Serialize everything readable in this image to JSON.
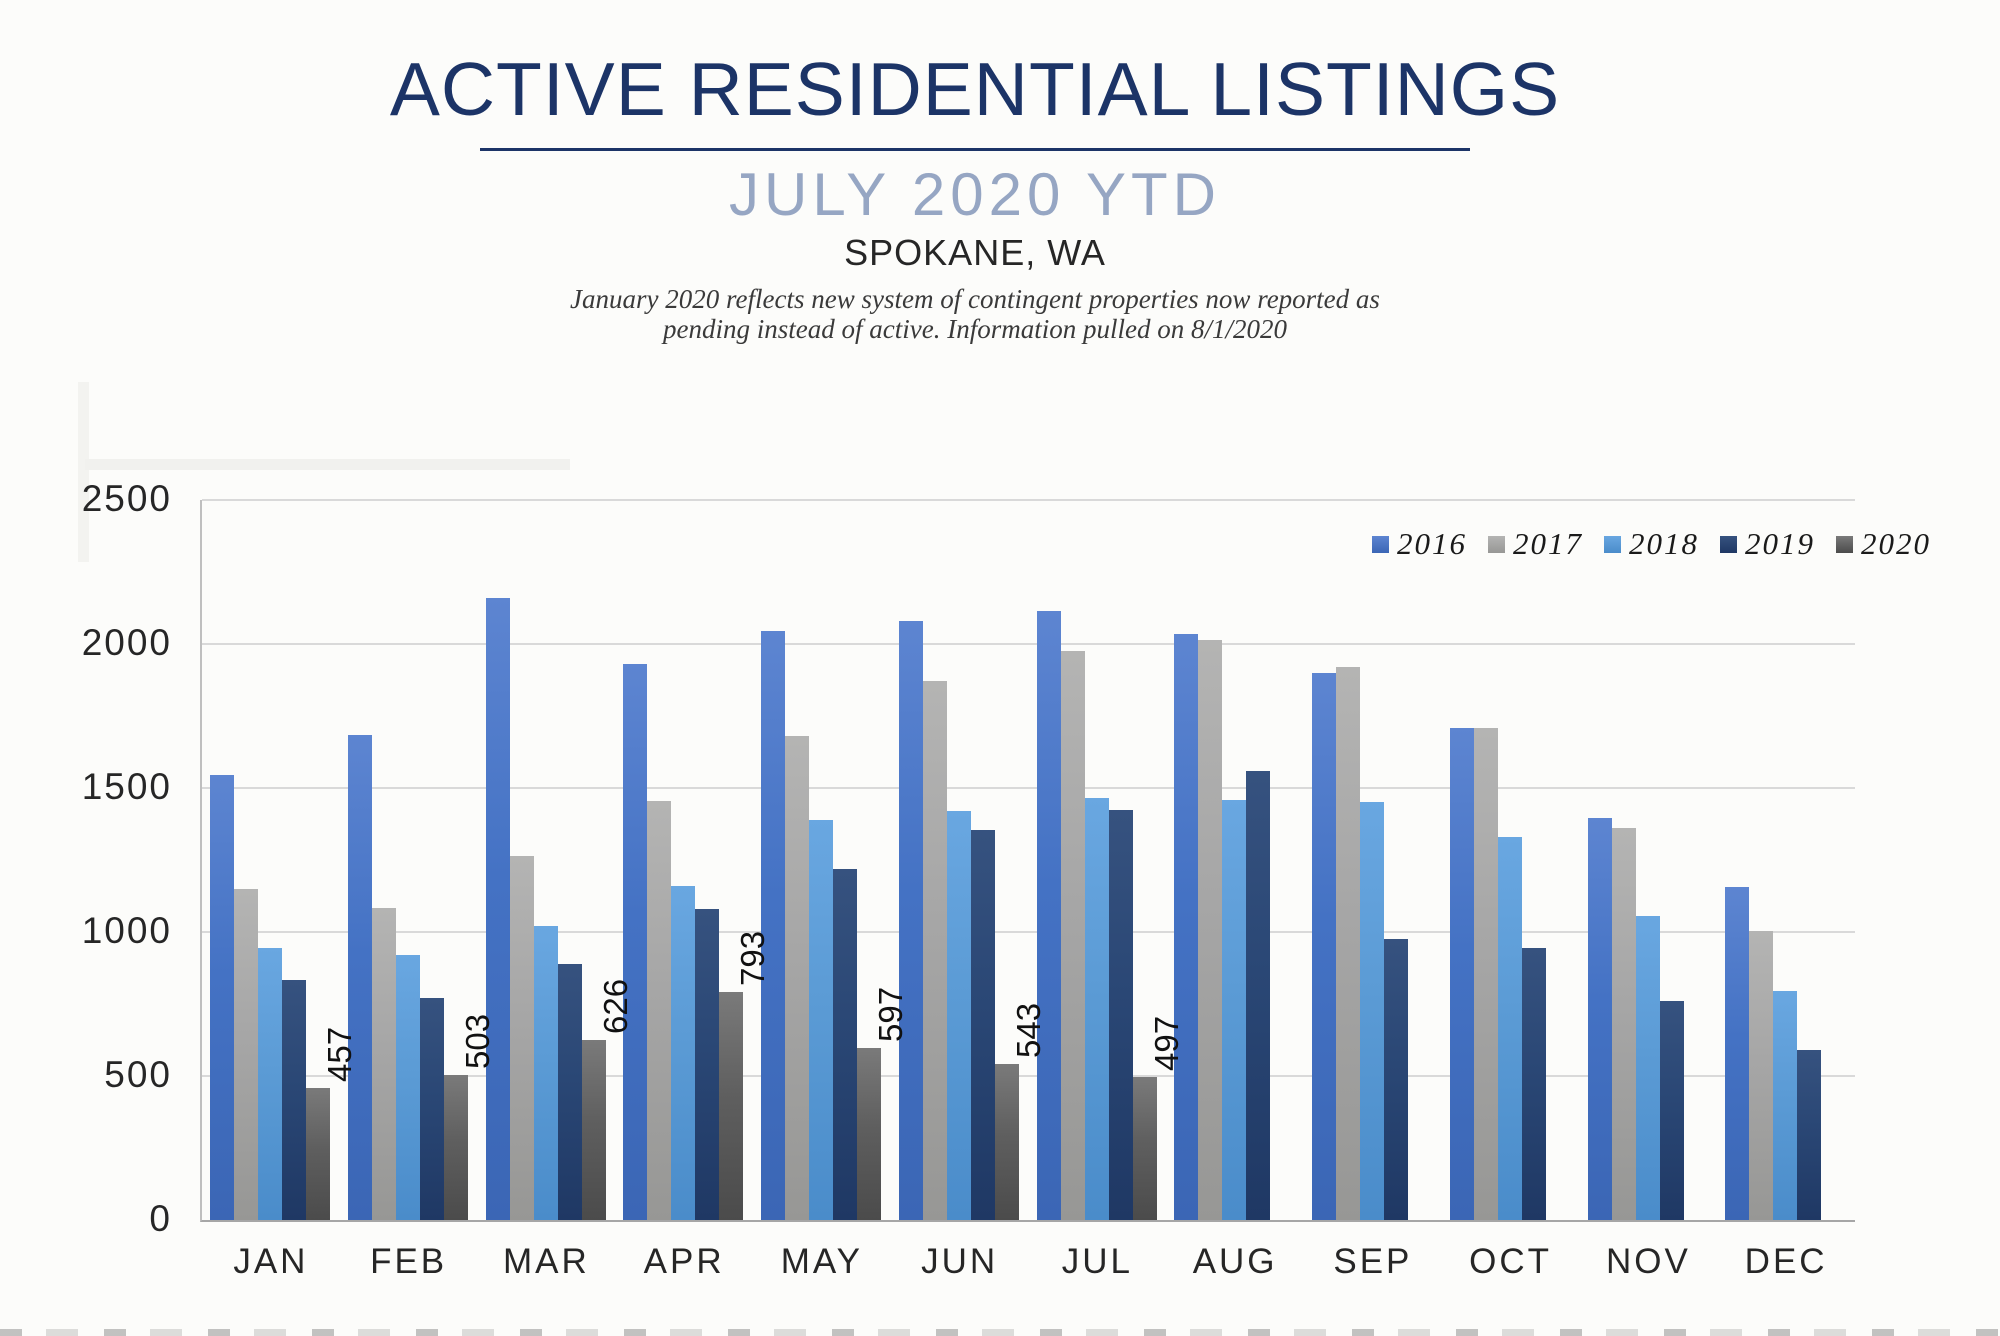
{
  "page": {
    "title": "ACTIVE RESIDENTIAL LISTINGS",
    "subtitle": "JULY 2020 YTD",
    "location": "SPOKANE, WA",
    "note_line1": "January 2020 reflects new system of contingent properties now reported as",
    "note_line2": "pending instead of active.  Information pulled on 8/1/2020"
  },
  "colors": {
    "title_navy": "#1c3467",
    "subtitle_blue_gray": "#96a6c3",
    "gridline": "#d9d9d9",
    "axis_line": "#a6a6a6",
    "series_2016": "#4472c4",
    "series_2017": "#a6a6a6",
    "series_2018": "#5b9bd5",
    "series_2019": "#264478",
    "series_2020": "#595959"
  },
  "chart_data": {
    "type": "bar",
    "title": "ACTIVE RESIDENTIAL LISTINGS",
    "subtitle": "JULY 2020 YTD",
    "region": "SPOKANE, WA",
    "categories": [
      "JAN",
      "FEB",
      "MAR",
      "APR",
      "MAY",
      "JUN",
      "JUL",
      "AUG",
      "SEP",
      "OCT",
      "NOV",
      "DEC"
    ],
    "series": [
      {
        "name": "2016",
        "values": [
          1545,
          1685,
          2160,
          1930,
          2045,
          2080,
          2115,
          2035,
          1900,
          1710,
          1395,
          1155
        ]
      },
      {
        "name": "2017",
        "values": [
          1150,
          1085,
          1265,
          1455,
          1680,
          1870,
          1975,
          2015,
          1920,
          1710,
          1360,
          1005
        ]
      },
      {
        "name": "2018",
        "values": [
          945,
          920,
          1020,
          1160,
          1390,
          1420,
          1465,
          1460,
          1450,
          1330,
          1055,
          795
        ]
      },
      {
        "name": "2019",
        "values": [
          835,
          770,
          890,
          1080,
          1220,
          1355,
          1425,
          1560,
          975,
          945,
          760,
          590
        ]
      },
      {
        "name": "2020",
        "values": [
          457,
          503,
          626,
          793,
          597,
          543,
          497,
          null,
          null,
          null,
          null,
          null
        ],
        "data_labels": [
          "457",
          "503",
          "626",
          "793",
          "597",
          "543",
          "497",
          null,
          null,
          null,
          null,
          null
        ]
      }
    ],
    "ylim": [
      0,
      2500
    ],
    "ytick_interval": 500,
    "yticks": [
      "2500",
      "2000",
      "1500",
      "1000",
      "500",
      "0"
    ],
    "grid": true,
    "legend_position": "top-right",
    "legend_entries": [
      "2016",
      "2017",
      "2018",
      "2019",
      "2020"
    ]
  }
}
